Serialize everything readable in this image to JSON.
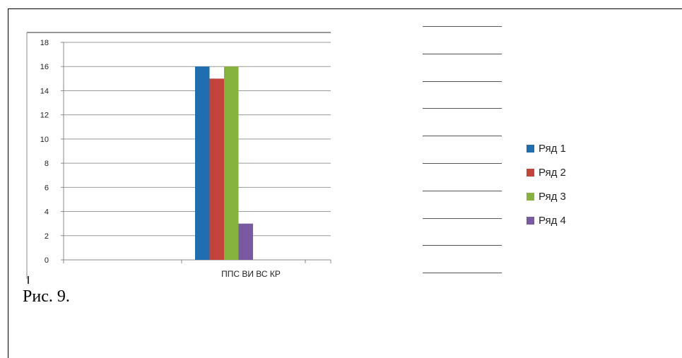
{
  "caption": "Рис. 9.",
  "chart_data": {
    "type": "bar",
    "categories": [
      "ППС",
      "ВИ",
      "ВС",
      "КР"
    ],
    "category_label_text": "ППС ВИ ВС КР",
    "series": [
      {
        "name": "Ряд 1",
        "color": "#1f6fb0",
        "values": [
          16,
          null,
          null,
          null
        ]
      },
      {
        "name": "Ряд 2",
        "color": "#c4433b",
        "values": [
          15,
          null,
          null,
          null
        ]
      },
      {
        "name": "Ряд 3",
        "color": "#86b33d",
        "values": [
          16,
          null,
          null,
          null
        ]
      },
      {
        "name": "Ряд 4",
        "color": "#7a59a3",
        "values": [
          3,
          null,
          null,
          null
        ]
      }
    ],
    "ylim": [
      0,
      18
    ],
    "yticks": [
      "0",
      "2",
      "4",
      "6",
      "8",
      "10",
      "12",
      "14",
      "16",
      "18"
    ],
    "grid": true,
    "legend_position": "right"
  },
  "blank_line_count": 10
}
